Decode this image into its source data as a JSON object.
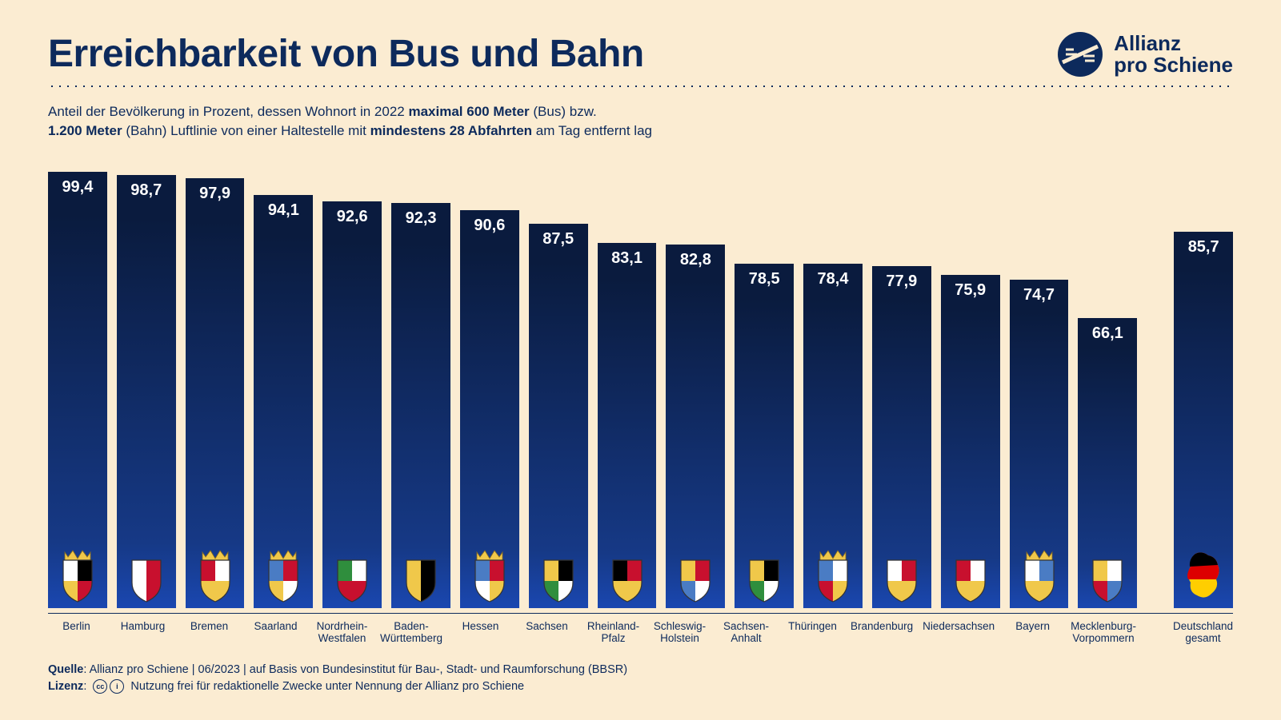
{
  "title": "Erreichbarkeit von Bus und Bahn",
  "logo": {
    "line1": "Allianz",
    "line2": "pro Schiene",
    "color": "#0d2a5c"
  },
  "subtitle_parts": {
    "p1": "Anteil der Bevölkerung in Prozent, dessen Wohnort in 2022 ",
    "b1": "maximal 600 Meter",
    "p2": " (Bus) bzw.",
    "b2": "1.200 Meter",
    "p3": " (Bahn) Luftlinie von einer Haltestelle mit ",
    "b3": "mindestens 28 Abfahrten",
    "p4": " am Tag entfernt lag"
  },
  "chart": {
    "type": "bar",
    "ylim": [
      0,
      100
    ],
    "bar_gradient_top": "#0a1b3e",
    "bar_gradient_bottom": "#1a47b0",
    "value_color": "#ffffff",
    "value_fontsize": 20,
    "label_color": "#0d2a5c",
    "label_fontsize": 13.5,
    "background_color": "#fbecd2",
    "axis_color": "#0d2a5c",
    "states": [
      {
        "id": "berlin",
        "label": "Berlin",
        "value": 99.4,
        "display": "99,4",
        "crest_colors": [
          "#ffffff",
          "#000000",
          "#f0c84a",
          "#c8102e"
        ]
      },
      {
        "id": "hamburg",
        "label": "Hamburg",
        "value": 98.7,
        "display": "98,7",
        "crest_colors": [
          "#ffffff",
          "#c8102e"
        ]
      },
      {
        "id": "bremen",
        "label": "Bremen",
        "value": 97.9,
        "display": "97,9",
        "crest_colors": [
          "#c8102e",
          "#ffffff",
          "#f0c84a"
        ]
      },
      {
        "id": "saarland",
        "label": "Saarland",
        "value": 94.1,
        "display": "94,1",
        "crest_colors": [
          "#4a7cc4",
          "#c8102e",
          "#f0c84a",
          "#ffffff",
          "#000000"
        ]
      },
      {
        "id": "nrw",
        "label": "Nordrhein-\nWestfalen",
        "value": 92.6,
        "display": "92,6",
        "crest_colors": [
          "#2f8e3d",
          "#ffffff",
          "#c8102e"
        ]
      },
      {
        "id": "bw",
        "label": "Baden-\nWürttemberg",
        "value": 92.3,
        "display": "92,3",
        "crest_colors": [
          "#f0c84a",
          "#000000"
        ]
      },
      {
        "id": "hessen",
        "label": "Hessen",
        "value": 90.6,
        "display": "90,6",
        "crest_colors": [
          "#4a7cc4",
          "#c8102e",
          "#ffffff",
          "#f0c84a"
        ]
      },
      {
        "id": "sachsen",
        "label": "Sachsen",
        "value": 87.5,
        "display": "87,5",
        "crest_colors": [
          "#f0c84a",
          "#000000",
          "#2f8e3d",
          "#ffffff"
        ]
      },
      {
        "id": "rlp",
        "label": "Rheinland-\nPfalz",
        "value": 83.1,
        "display": "83,1",
        "crest_colors": [
          "#000000",
          "#c8102e",
          "#f0c84a"
        ]
      },
      {
        "id": "sh",
        "label": "Schleswig-\nHolstein",
        "value": 82.8,
        "display": "82,8",
        "crest_colors": [
          "#f0c84a",
          "#c8102e",
          "#4a7cc4",
          "#ffffff"
        ]
      },
      {
        "id": "sa",
        "label": "Sachsen-\nAnhalt",
        "value": 78.5,
        "display": "78,5",
        "crest_colors": [
          "#f0c84a",
          "#000000",
          "#2f8e3d",
          "#ffffff"
        ]
      },
      {
        "id": "thueringen",
        "label": "Thüringen",
        "value": 78.4,
        "display": "78,4",
        "crest_colors": [
          "#4a7cc4",
          "#ffffff",
          "#c8102e",
          "#f0c84a"
        ]
      },
      {
        "id": "brandenburg",
        "label": "Brandenburg",
        "value": 77.9,
        "display": "77,9",
        "crest_colors": [
          "#ffffff",
          "#c8102e",
          "#f0c84a"
        ]
      },
      {
        "id": "niedersachsen",
        "label": "Niedersachsen",
        "value": 75.9,
        "display": "75,9",
        "crest_colors": [
          "#c8102e",
          "#ffffff",
          "#f0c84a"
        ]
      },
      {
        "id": "bayern",
        "label": "Bayern",
        "value": 74.7,
        "display": "74,7",
        "crest_colors": [
          "#ffffff",
          "#4a7cc4",
          "#f0c84a"
        ]
      },
      {
        "id": "mv",
        "label": "Mecklenburg-\nVorpommern",
        "value": 66.1,
        "display": "66,1",
        "crest_colors": [
          "#f0c84a",
          "#ffffff",
          "#c8102e",
          "#4a7cc4"
        ]
      }
    ],
    "total": {
      "id": "de",
      "label": "Deutschland\ngesamt",
      "value": 85.7,
      "display": "85,7",
      "flag_colors": [
        "#000000",
        "#dd0000",
        "#ffce00"
      ]
    }
  },
  "footer": {
    "quelle_label": "Quelle",
    "quelle_text": ": Allianz pro Schiene | 06/2023 | auf Basis von Bundesinstitut für Bau-, Stadt- und Raumforschung (BBSR)",
    "lizenz_label": "Lizenz",
    "lizenz_text": " Nutzung frei für redaktionelle Zwecke unter Nennung der Allianz pro Schiene",
    "cc_badges": [
      "cc",
      "i"
    ]
  }
}
